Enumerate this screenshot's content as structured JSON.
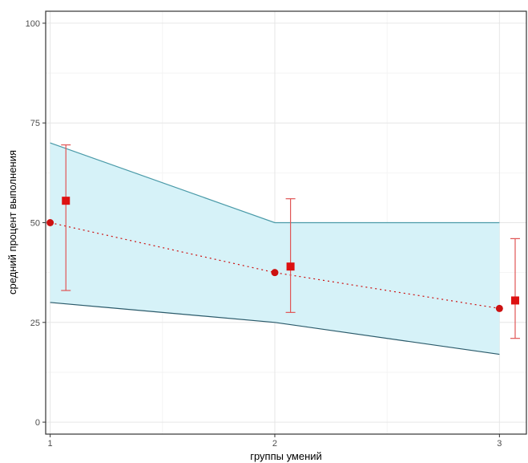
{
  "chart_data": {
    "type": "line",
    "xlabel": "группы умений",
    "ylabel": "средний процент выполнения",
    "xlim": [
      0.98,
      3.12
    ],
    "ylim": [
      -3,
      103
    ],
    "x_ticks": [
      1,
      2,
      3
    ],
    "x_tick_labels": [
      "1",
      "2",
      "3"
    ],
    "y_ticks": [
      0,
      25,
      50,
      75,
      100
    ],
    "y_tick_labels": [
      "0",
      "25",
      "50",
      "75",
      "100"
    ],
    "grid": true,
    "band": {
      "x": [
        1,
        2,
        3
      ],
      "upper": [
        70,
        50,
        50
      ],
      "lower": [
        30,
        25,
        17
      ],
      "fill": "#d6f2f8",
      "upper_line_color": "#4a9aa8",
      "lower_line_color": "#2a5a6a"
    },
    "series": [
      {
        "kind": "dotted-line-points",
        "x": [
          1,
          2,
          3
        ],
        "y": [
          50,
          37.5,
          28.5
        ],
        "color": "#cc1111"
      },
      {
        "kind": "square-errorbar",
        "x": [
          1.07,
          2.07,
          3.07
        ],
        "y": [
          55.5,
          39,
          30.5
        ],
        "ymin": [
          33,
          27.5,
          21
        ],
        "ymax": [
          69.5,
          56,
          46
        ],
        "color": "#dd1111",
        "errorbar_color": "#e05555"
      }
    ]
  }
}
